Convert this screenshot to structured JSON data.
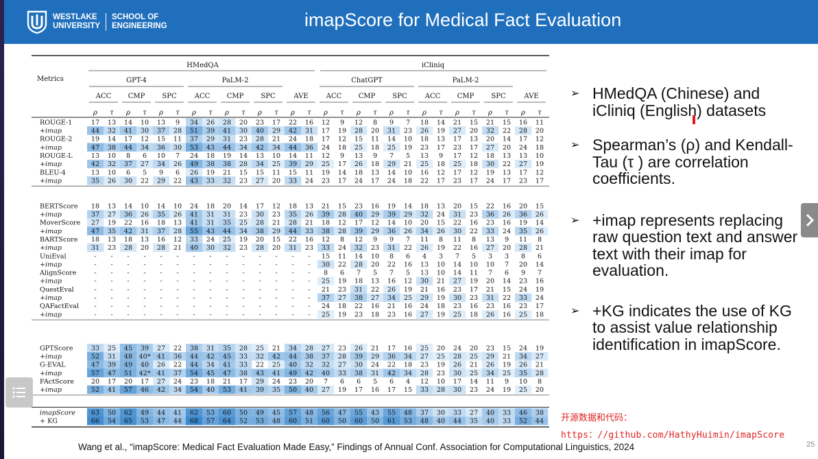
{
  "header": {
    "logo_line1": "WESTLAKE",
    "logo_line2": "UNIVERSITY",
    "school_line1": "SCHOOL OF",
    "school_line2": "ENGINEERING",
    "title": "imapScore for Medical Fact Evaluation"
  },
  "table": {
    "metrics_label": "Metrics",
    "dataset_groups": [
      "HMedQA",
      "iCliniq"
    ],
    "model_groups": [
      "GPT-4",
      "PaLM-2",
      "ChatGPT",
      "PaLM-2"
    ],
    "sub_columns": [
      "ACC",
      "CMP",
      "SPC",
      "ACC",
      "CMP",
      "SPC",
      "AVE",
      "ACC",
      "CMP",
      "SPC",
      "ACC",
      "CMP",
      "SPC",
      "AVE"
    ],
    "coef_symbols": [
      "ρ",
      "τ"
    ],
    "blocks": [
      [
        {
          "name": "ROUGE-1",
          "italic": false,
          "cells": [
            "17",
            "13",
            "14",
            "10",
            "13",
            "9",
            "34",
            "26",
            "28",
            "20",
            "23",
            "17",
            "22",
            "16",
            "12",
            "9",
            "12",
            "8",
            "9",
            "7",
            "18",
            "14",
            "21",
            "15",
            "21",
            "15",
            "16",
            "11"
          ]
        },
        {
          "name": "+imap",
          "italic": true,
          "cells": [
            "44",
            "32",
            "41",
            "30",
            "37",
            "28",
            "51",
            "39",
            "41",
            "30",
            "40",
            "29",
            "42",
            "31",
            "17",
            "19",
            "28",
            "20",
            "31",
            "23",
            "26",
            "19",
            "27",
            "20",
            "32",
            "22",
            "28",
            "20"
          ]
        },
        {
          "name": "ROUGE-2",
          "italic": false,
          "cells": [
            "19",
            "14",
            "17",
            "12",
            "15",
            "11",
            "37",
            "29",
            "31",
            "23",
            "28",
            "21",
            "24",
            "18",
            "17",
            "12",
            "15",
            "11",
            "14",
            "10",
            "18",
            "13",
            "17",
            "13",
            "20",
            "14",
            "17",
            "12"
          ]
        },
        {
          "name": "+imap",
          "italic": true,
          "cells": [
            "47",
            "38",
            "44",
            "34",
            "36",
            "30",
            "53",
            "43",
            "44",
            "34",
            "42",
            "34",
            "44",
            "36",
            "24",
            "18",
            "25",
            "18",
            "25",
            "19",
            "23",
            "17",
            "23",
            "17",
            "27",
            "20",
            "24",
            "18"
          ]
        },
        {
          "name": "ROUGE-L",
          "italic": false,
          "cells": [
            "13",
            "10",
            "8",
            "6",
            "10",
            "7",
            "24",
            "18",
            "19",
            "14",
            "13",
            "10",
            "14",
            "11",
            "12",
            "9",
            "13",
            "9",
            "7",
            "5",
            "13",
            "9",
            "17",
            "12",
            "18",
            "13",
            "13",
            "10"
          ]
        },
        {
          "name": "+imap",
          "italic": true,
          "cells": [
            "42",
            "32",
            "37",
            "27",
            "34",
            "26",
            "49",
            "38",
            "38",
            "28",
            "34",
            "25",
            "39",
            "29",
            "25",
            "17",
            "26",
            "18",
            "29",
            "21",
            "25",
            "18",
            "25",
            "18",
            "30",
            "22",
            "27",
            "19"
          ]
        },
        {
          "name": "BLEU-4",
          "italic": false,
          "cells": [
            "13",
            "10",
            "6",
            "5",
            "9",
            "6",
            "26",
            "19",
            "21",
            "15",
            "15",
            "11",
            "15",
            "11",
            "19",
            "14",
            "18",
            "13",
            "14",
            "10",
            "16",
            "12",
            "17",
            "12",
            "19",
            "13",
            "17",
            "12"
          ]
        },
        {
          "name": "+imap",
          "italic": true,
          "cells": [
            "35",
            "26",
            "30",
            "22",
            "29",
            "22",
            "43",
            "33",
            "32",
            "23",
            "27",
            "20",
            "33",
            "24",
            "23",
            "17",
            "24",
            "17",
            "24",
            "18",
            "22",
            "17",
            "23",
            "17",
            "24",
            "17",
            "23",
            "17"
          ]
        }
      ],
      [
        {
          "name": "BERTScore",
          "italic": false,
          "cells": [
            "18",
            "13",
            "14",
            "10",
            "14",
            "10",
            "24",
            "18",
            "20",
            "14",
            "17",
            "12",
            "18",
            "13",
            "21",
            "15",
            "23",
            "16",
            "19",
            "14",
            "18",
            "13",
            "20",
            "15",
            "22",
            "16",
            "20",
            "15"
          ]
        },
        {
          "name": "+imap",
          "italic": true,
          "cells": [
            "37",
            "27",
            "36",
            "26",
            "35",
            "26",
            "41",
            "31",
            "31",
            "23",
            "30",
            "23",
            "35",
            "26",
            "39",
            "28",
            "40",
            "29",
            "39",
            "29",
            "32",
            "24",
            "31",
            "23",
            "36",
            "26",
            "36",
            "26"
          ]
        },
        {
          "name": "MoverScore",
          "italic": false,
          "cells": [
            "27",
            "19",
            "22",
            "16",
            "18",
            "13",
            "41",
            "31",
            "35",
            "25",
            "28",
            "21",
            "28",
            "21",
            "18",
            "12",
            "17",
            "12",
            "14",
            "10",
            "20",
            "15",
            "22",
            "16",
            "23",
            "16",
            "19",
            "14"
          ]
        },
        {
          "name": "+imap",
          "italic": true,
          "cells": [
            "47",
            "35",
            "42",
            "31",
            "37",
            "28",
            "55",
            "43",
            "44",
            "34",
            "38",
            "29",
            "44",
            "33",
            "38",
            "28",
            "39",
            "29",
            "36",
            "26",
            "34",
            "26",
            "30",
            "22",
            "33",
            "24",
            "35",
            "26"
          ]
        },
        {
          "name": "BARTScore",
          "italic": false,
          "cells": [
            "18",
            "13",
            "18",
            "13",
            "16",
            "12",
            "33",
            "24",
            "25",
            "19",
            "20",
            "15",
            "22",
            "16",
            "12",
            "8",
            "12",
            "9",
            "9",
            "7",
            "11",
            "8",
            "11",
            "8",
            "13",
            "9",
            "11",
            "8"
          ]
        },
        {
          "name": "+imap",
          "italic": true,
          "cells": [
            "31",
            "23",
            "28",
            "20",
            "28",
            "21",
            "40",
            "30",
            "32",
            "23",
            "28",
            "20",
            "31",
            "23",
            "33",
            "24",
            "32",
            "23",
            "31",
            "22",
            "26",
            "19",
            "22",
            "16",
            "27",
            "20",
            "28",
            "21"
          ]
        },
        {
          "name": "UniEval",
          "italic": false,
          "cells": [
            "-",
            "-",
            "-",
            "-",
            "-",
            "-",
            "-",
            "-",
            "-",
            "-",
            "-",
            "-",
            "-",
            "-",
            "15",
            "11",
            "14",
            "10",
            "8",
            "6",
            "4",
            "3",
            "7",
            "5",
            "3",
            "3",
            "8",
            "6"
          ]
        },
        {
          "name": "+imap",
          "italic": true,
          "cells": [
            "-",
            "-",
            "-",
            "-",
            "-",
            "-",
            "-",
            "-",
            "-",
            "-",
            "-",
            "-",
            "-",
            "-",
            "30",
            "22",
            "28",
            "20",
            "22",
            "16",
            "13",
            "10",
            "14",
            "10",
            "10",
            "7",
            "20",
            "14"
          ]
        },
        {
          "name": "AlignScore",
          "italic": false,
          "cells": [
            "-",
            "-",
            "-",
            "-",
            "-",
            "-",
            "-",
            "-",
            "-",
            "-",
            "-",
            "-",
            "-",
            "-",
            "8",
            "6",
            "7",
            "5",
            "7",
            "5",
            "13",
            "10",
            "14",
            "11",
            "7",
            "6",
            "9",
            "7"
          ]
        },
        {
          "name": "+imap",
          "italic": true,
          "cells": [
            "-",
            "-",
            "-",
            "-",
            "-",
            "-",
            "-",
            "-",
            "-",
            "-",
            "-",
            "-",
            "-",
            "-",
            "25",
            "19",
            "18",
            "13",
            "16",
            "12",
            "30",
            "21",
            "27",
            "19",
            "20",
            "14",
            "23",
            "16"
          ]
        },
        {
          "name": "QuestEval",
          "italic": false,
          "cells": [
            "-",
            "-",
            "-",
            "-",
            "-",
            "-",
            "-",
            "-",
            "-",
            "-",
            "-",
            "-",
            "-",
            "-",
            "21",
            "23",
            "31",
            "22",
            "26",
            "19",
            "21",
            "16",
            "23",
            "17",
            "21",
            "15",
            "24",
            "19"
          ]
        },
        {
          "name": "+imap",
          "italic": true,
          "cells": [
            "-",
            "-",
            "-",
            "-",
            "-",
            "-",
            "-",
            "-",
            "-",
            "-",
            "-",
            "-",
            "-",
            "-",
            "37",
            "27",
            "38",
            "27",
            "34",
            "25",
            "29",
            "19",
            "30",
            "23",
            "31",
            "22",
            "33",
            "24"
          ]
        },
        {
          "name": "QAFactEval",
          "italic": false,
          "cells": [
            "-",
            "-",
            "-",
            "-",
            "-",
            "-",
            "-",
            "-",
            "-",
            "-",
            "-",
            "-",
            "-",
            "-",
            "24",
            "18",
            "22",
            "16",
            "21",
            "16",
            "24",
            "18",
            "23",
            "16",
            "23",
            "16",
            "23",
            "17"
          ]
        },
        {
          "name": "+imap",
          "italic": true,
          "cells": [
            "-",
            "-",
            "-",
            "-",
            "-",
            "-",
            "-",
            "-",
            "-",
            "-",
            "-",
            "-",
            "-",
            "-",
            "25",
            "19",
            "23",
            "18",
            "23",
            "16",
            "27",
            "19",
            "25",
            "18",
            "26",
            "16",
            "25",
            "18"
          ]
        }
      ],
      [
        {
          "name": "GPTScore",
          "italic": false,
          "cells": [
            "33",
            "25",
            "45",
            "39",
            "27",
            "22",
            "38",
            "31",
            "35",
            "28",
            "25",
            "21",
            "34",
            "28",
            "27",
            "23",
            "26",
            "21",
            "17",
            "16",
            "25",
            "20",
            "24",
            "20",
            "23",
            "15",
            "24",
            "19"
          ]
        },
        {
          "name": "+imap",
          "italic": true,
          "cells": [
            "52",
            "31",
            "48",
            "40*",
            "41",
            "36",
            "44",
            "42",
            "45",
            "33",
            "32",
            "42",
            "44",
            "38",
            "37",
            "28",
            "39",
            "29",
            "36",
            "34",
            "27",
            "25",
            "28",
            "25",
            "29",
            "21",
            "34",
            "27"
          ]
        },
        {
          "name": "G-EVAL",
          "italic": false,
          "cells": [
            "47",
            "39",
            "49",
            "40",
            "26",
            "22",
            "44",
            "34",
            "41",
            "33",
            "22",
            "25",
            "40",
            "32",
            "32",
            "27",
            "30",
            "24",
            "22",
            "18",
            "23",
            "19",
            "26",
            "21",
            "26",
            "19",
            "26",
            "21"
          ]
        },
        {
          "name": "+imap",
          "italic": true,
          "cells": [
            "57",
            "47",
            "51",
            "42*",
            "41",
            "37",
            "54",
            "45",
            "47",
            "38",
            "43",
            "41",
            "49",
            "42",
            "40",
            "33",
            "38",
            "31",
            "42",
            "34",
            "28",
            "23",
            "30",
            "25",
            "34",
            "25",
            "35",
            "28"
          ]
        },
        {
          "name": "FActScore",
          "italic": false,
          "cells": [
            "20",
            "17",
            "20",
            "17",
            "27",
            "24",
            "23",
            "18",
            "21",
            "17",
            "29",
            "24",
            "23",
            "20",
            "7",
            "6",
            "6",
            "5",
            "6",
            "4",
            "12",
            "10",
            "17",
            "14",
            "11",
            "9",
            "10",
            "8"
          ]
        },
        {
          "name": "+imap",
          "italic": true,
          "cells": [
            "52",
            "41",
            "57",
            "46",
            "42",
            "34",
            "54",
            "40",
            "53",
            "41",
            "39",
            "35",
            "50",
            "40",
            "27",
            "19",
            "17",
            "16",
            "17",
            "15",
            "33",
            "28",
            "30",
            "23",
            "24",
            "19",
            "25",
            "20"
          ]
        }
      ],
      [
        {
          "name": "imapScore",
          "italic": true,
          "cells": [
            "63",
            "50",
            "62",
            "49",
            "44",
            "41",
            "62",
            "53",
            "60",
            "50",
            "49",
            "45",
            "57",
            "48",
            "56",
            "47",
            "55",
            "43",
            "55",
            "48",
            "37",
            "30",
            "33",
            "27",
            "40",
            "33",
            "46",
            "38"
          ]
        },
        {
          "name": "+ KG",
          "italic": false,
          "cells": [
            "66",
            "54",
            "65",
            "53",
            "47",
            "44",
            "68",
            "57",
            "64",
            "52",
            "53",
            "48",
            "60",
            "51",
            "60",
            "50",
            "60",
            "50",
            "61",
            "53",
            "48",
            "40",
            "44",
            "35",
            "40",
            "33",
            "52",
            "44"
          ]
        }
      ]
    ]
  },
  "bullets": [
    "HMedQA (Chinese) and iCliniq (English) datasets",
    "Spearman’s (ρ) and Kendall-Tau (τ ) are correlation coefficients.",
    "+imap represents replacing raw question text and answer text with their imap for evaluation.",
    "+KG indicates the use of KG to assist value relationship identification in imapScore."
  ],
  "bullet_arrow": "➢",
  "code_note": "开源数据和代码：",
  "code_url": "https：//github.com/HathyHuimin/imapScore",
  "citation": "Wang et al., “imapScore: Medical Fact Evaluation Made Easy,” Findings of Annual Conf. Association for Computational Linguistics, 2024",
  "page_number": "25",
  "colors": {
    "header_blue": "#1f6fbd",
    "heat_low": "#eaf3fb",
    "heat_high": "#3f8fd2",
    "link_red": "#e02222"
  },
  "icons": {
    "next": "chevron-right-icon",
    "menu": "list-icon"
  }
}
